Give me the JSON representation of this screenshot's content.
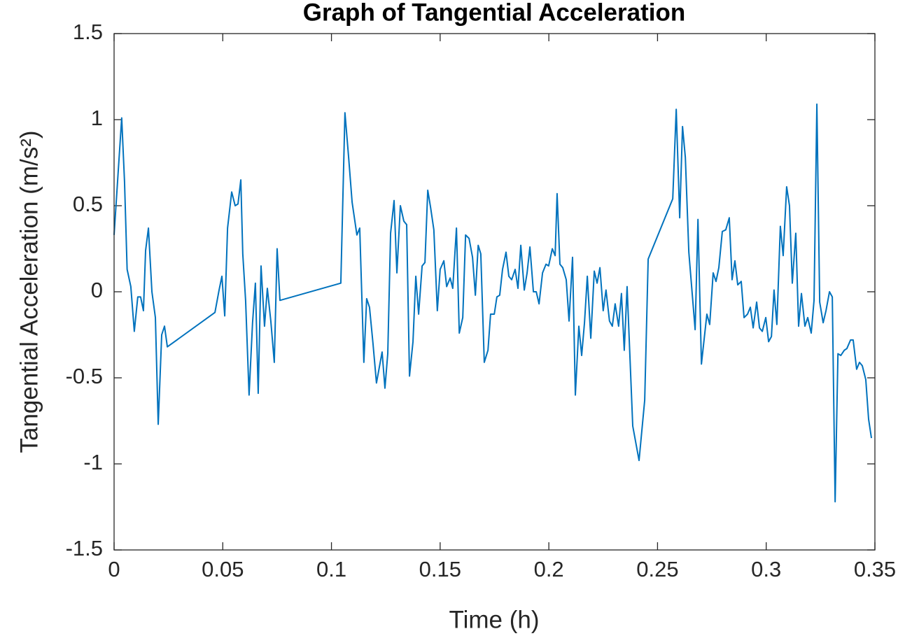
{
  "chart_data": {
    "type": "line",
    "title": "Graph of Tangential Acceleration",
    "x_label": "Time (h)",
    "y_label": "Tangential Acceleration (m/s²)",
    "color": "#0072bd",
    "xlim": [
      0,
      0.35
    ],
    "ylim": [
      -1.5,
      1.5
    ],
    "xticks": [
      0,
      0.05,
      0.1,
      0.15,
      0.2,
      0.25,
      0.3,
      0.35
    ],
    "yticks": [
      -1.5,
      -1,
      -0.5,
      0,
      0.5,
      1,
      1.5
    ],
    "grid": false,
    "x": [
      0,
      0.0035,
      0.0048,
      0.006,
      0.0077,
      0.0093,
      0.0109,
      0.0122,
      0.0135,
      0.0145,
      0.0158,
      0.0174,
      0.019,
      0.0203,
      0.0219,
      0.0232,
      0.0245,
      0.0464,
      0.0483,
      0.0496,
      0.0509,
      0.0522,
      0.0541,
      0.0557,
      0.057,
      0.0583,
      0.0592,
      0.0605,
      0.0621,
      0.0637,
      0.065,
      0.0663,
      0.0676,
      0.0692,
      0.0705,
      0.0721,
      0.0737,
      0.075,
      0.0763,
      0.1043,
      0.1062,
      0.1079,
      0.1095,
      0.1117,
      0.113,
      0.1149,
      0.1162,
      0.1175,
      0.1191,
      0.1207,
      0.122,
      0.1233,
      0.1246,
      0.1259,
      0.1272,
      0.1288,
      0.1301,
      0.1317,
      0.1333,
      0.1346,
      0.1359,
      0.1375,
      0.1388,
      0.1401,
      0.1417,
      0.143,
      0.1443,
      0.1456,
      0.1471,
      0.1487,
      0.15,
      0.1517,
      0.153,
      0.1546,
      0.1558,
      0.1575,
      0.1588,
      0.1604,
      0.1617,
      0.1633,
      0.1649,
      0.1662,
      0.1675,
      0.1687,
      0.1703,
      0.172,
      0.1732,
      0.1749,
      0.1761,
      0.1774,
      0.1787,
      0.1803,
      0.1816,
      0.1829,
      0.1845,
      0.1858,
      0.1871,
      0.1887,
      0.19,
      0.1913,
      0.1929,
      0.1942,
      0.1955,
      0.1971,
      0.1987,
      0.1999,
      0.2016,
      0.2029,
      0.2038,
      0.2051,
      0.2064,
      0.208,
      0.2093,
      0.2109,
      0.2122,
      0.2138,
      0.2151,
      0.2164,
      0.2177,
      0.2193,
      0.2209,
      0.2222,
      0.2235,
      0.225,
      0.2263,
      0.2279,
      0.2292,
      0.2305,
      0.2321,
      0.2334,
      0.2347,
      0.236,
      0.2386,
      0.2415,
      0.2441,
      0.2457,
      0.257,
      0.2586,
      0.2602,
      0.2615,
      0.2628,
      0.2644,
      0.2673,
      0.2686,
      0.2702,
      0.2727,
      0.274,
      0.2756,
      0.2769,
      0.2782,
      0.2798,
      0.2814,
      0.283,
      0.2843,
      0.2856,
      0.2869,
      0.2885,
      0.2898,
      0.2914,
      0.2927,
      0.294,
      0.2956,
      0.2969,
      0.2982,
      0.2998,
      0.3011,
      0.3024,
      0.3036,
      0.3049,
      0.3065,
      0.3078,
      0.3094,
      0.3107,
      0.312,
      0.3136,
      0.3149,
      0.3162,
      0.3178,
      0.3191,
      0.3207,
      0.322,
      0.3233,
      0.3246,
      0.3262,
      0.3275,
      0.3291,
      0.3304,
      0.3317,
      0.333,
      0.3343,
      0.3359,
      0.3371,
      0.3388,
      0.34,
      0.3416,
      0.3429,
      0.3442,
      0.3458,
      0.3471,
      0.3484
    ],
    "values": [
      0.33,
      1.01,
      0.64,
      0.13,
      0.03,
      -0.23,
      -0.03,
      -0.03,
      -0.11,
      0.24,
      0.37,
      0.0,
      -0.15,
      -0.77,
      -0.25,
      -0.2,
      -0.32,
      -0.12,
      0.01,
      0.09,
      -0.14,
      0.37,
      0.58,
      0.5,
      0.51,
      0.65,
      0.22,
      -0.05,
      -0.6,
      -0.18,
      0.05,
      -0.59,
      0.15,
      -0.2,
      0.02,
      -0.17,
      -0.41,
      0.25,
      -0.05,
      0.05,
      1.04,
      0.78,
      0.52,
      0.33,
      0.37,
      -0.41,
      -0.04,
      -0.09,
      -0.3,
      -0.53,
      -0.44,
      -0.35,
      -0.56,
      -0.36,
      0.34,
      0.53,
      0.11,
      0.5,
      0.41,
      0.39,
      -0.49,
      -0.29,
      0.09,
      -0.13,
      0.15,
      0.17,
      0.59,
      0.49,
      0.36,
      -0.11,
      0.13,
      0.18,
      0.03,
      0.08,
      0.02,
      0.37,
      -0.24,
      -0.15,
      0.33,
      0.31,
      0.2,
      -0.02,
      0.27,
      0.22,
      -0.41,
      -0.34,
      -0.13,
      -0.13,
      -0.03,
      -0.02,
      0.13,
      0.23,
      0.09,
      0.07,
      0.13,
      0.02,
      0.27,
      0.01,
      0.11,
      0.26,
      0.0,
      0.0,
      -0.07,
      0.11,
      0.16,
      0.15,
      0.25,
      0.21,
      0.57,
      0.16,
      0.14,
      0.07,
      -0.17,
      0.2,
      -0.6,
      -0.2,
      -0.37,
      -0.18,
      0.09,
      -0.27,
      0.12,
      0.05,
      0.14,
      -0.11,
      0.01,
      -0.17,
      -0.2,
      -0.07,
      -0.2,
      -0.01,
      -0.34,
      0.03,
      -0.78,
      -0.98,
      -0.63,
      0.19,
      0.54,
      1.06,
      0.43,
      0.96,
      0.78,
      0.23,
      -0.22,
      0.42,
      -0.42,
      -0.13,
      -0.19,
      0.11,
      0.06,
      0.14,
      0.35,
      0.36,
      0.43,
      0.07,
      0.18,
      0.04,
      0.06,
      -0.15,
      -0.13,
      -0.09,
      -0.21,
      -0.06,
      -0.21,
      -0.23,
      -0.15,
      -0.29,
      -0.26,
      0.01,
      -0.19,
      0.38,
      0.21,
      0.61,
      0.5,
      0.05,
      0.34,
      -0.2,
      -0.01,
      -0.2,
      -0.15,
      -0.24,
      -0.05,
      1.09,
      -0.06,
      -0.18,
      -0.11,
      0.0,
      -0.03,
      -1.22,
      -0.36,
      -0.37,
      -0.34,
      -0.33,
      -0.28,
      -0.28,
      -0.45,
      -0.41,
      -0.43,
      -0.51,
      -0.74,
      -0.85
    ]
  }
}
